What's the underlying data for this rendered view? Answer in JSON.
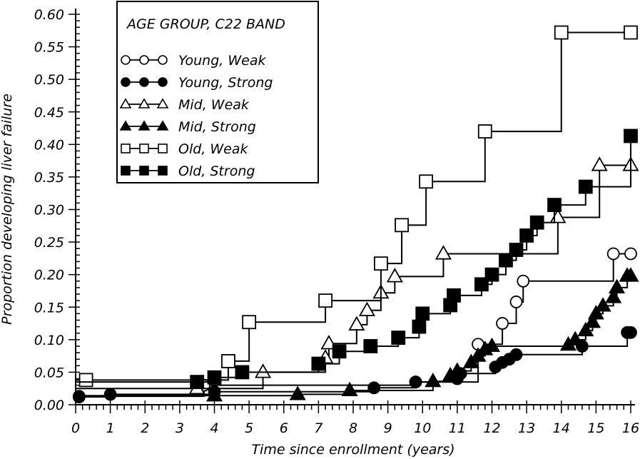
{
  "chart_data": {
    "type": "line",
    "step": true,
    "title": "",
    "xlabel": "Time since enrollment (years)",
    "ylabel": "Proportion developing liver failure",
    "xlim": [
      0,
      16
    ],
    "ylim": [
      0,
      0.6
    ],
    "x_ticks": [
      "0",
      "1",
      "2",
      "3",
      "4",
      "5",
      "6",
      "7",
      "8",
      "9",
      "10",
      "11",
      "12",
      "13",
      "14",
      "15",
      "16"
    ],
    "y_ticks": [
      "0.00",
      "0.05",
      "0.10",
      "0.15",
      "0.20",
      "0.25",
      "0.30",
      "0.35",
      "0.40",
      "0.45",
      "0.50",
      "0.55",
      "0.60"
    ],
    "grid": false,
    "legend": {
      "title": "AGE GROUP, C22 BAND",
      "placement": "top-left"
    },
    "series": [
      {
        "name": "Young, Weak",
        "marker": "circle-open",
        "points": [
          [
            0.1,
            0.013
          ],
          [
            3.7,
            0.03
          ],
          [
            9.8,
            0.035
          ],
          [
            11.6,
            0.093
          ],
          [
            12.3,
            0.125
          ],
          [
            12.7,
            0.158
          ],
          [
            12.9,
            0.19
          ],
          [
            15.5,
            0.232
          ],
          [
            16.0,
            0.232
          ]
        ]
      },
      {
        "name": "Young, Strong",
        "marker": "circle-filled",
        "points": [
          [
            0.1,
            0.012
          ],
          [
            1.0,
            0.016
          ],
          [
            4.0,
            0.02
          ],
          [
            8.6,
            0.026
          ],
          [
            9.8,
            0.035
          ],
          [
            11.0,
            0.04
          ],
          [
            11.1,
            0.048
          ],
          [
            12.1,
            0.058
          ],
          [
            12.3,
            0.065
          ],
          [
            12.5,
            0.07
          ],
          [
            12.7,
            0.077
          ],
          [
            14.6,
            0.09
          ],
          [
            15.9,
            0.111
          ],
          [
            16.0,
            0.111
          ]
        ]
      },
      {
        "name": "Mid, Weak",
        "marker": "triangle-open",
        "points": [
          [
            3.5,
            0.025
          ],
          [
            5.4,
            0.05
          ],
          [
            7.2,
            0.072
          ],
          [
            7.3,
            0.094
          ],
          [
            8.1,
            0.123
          ],
          [
            8.4,
            0.145
          ],
          [
            8.8,
            0.172
          ],
          [
            9.2,
            0.197
          ],
          [
            10.6,
            0.232
          ],
          [
            13.9,
            0.288
          ],
          [
            15.1,
            0.368
          ],
          [
            16.0,
            0.368
          ]
        ]
      },
      {
        "name": "Mid, Strong",
        "marker": "triangle-filled",
        "points": [
          [
            4.0,
            0.014
          ],
          [
            6.4,
            0.016
          ],
          [
            7.9,
            0.022
          ],
          [
            10.3,
            0.036
          ],
          [
            10.8,
            0.045
          ],
          [
            11.0,
            0.052
          ],
          [
            11.4,
            0.065
          ],
          [
            11.6,
            0.075
          ],
          [
            11.8,
            0.085
          ],
          [
            12.0,
            0.09
          ],
          [
            14.2,
            0.092
          ],
          [
            14.4,
            0.1
          ],
          [
            14.7,
            0.114
          ],
          [
            14.9,
            0.127
          ],
          [
            15.0,
            0.14
          ],
          [
            15.2,
            0.152
          ],
          [
            15.5,
            0.165
          ],
          [
            15.6,
            0.18
          ],
          [
            15.9,
            0.198
          ],
          [
            16.0,
            0.198
          ]
        ]
      },
      {
        "name": "Old, Weak",
        "marker": "square-open",
        "points": [
          [
            0.3,
            0.038
          ],
          [
            4.4,
            0.067
          ],
          [
            5.0,
            0.127
          ],
          [
            7.2,
            0.16
          ],
          [
            8.8,
            0.217
          ],
          [
            9.4,
            0.276
          ],
          [
            10.1,
            0.343
          ],
          [
            11.8,
            0.42
          ],
          [
            14.0,
            0.572
          ],
          [
            16.0,
            0.572
          ]
        ]
      },
      {
        "name": "Old, Strong",
        "marker": "square-filled",
        "points": [
          [
            3.5,
            0.035
          ],
          [
            4.0,
            0.042
          ],
          [
            4.8,
            0.05
          ],
          [
            7.0,
            0.063
          ],
          [
            7.6,
            0.082
          ],
          [
            8.5,
            0.09
          ],
          [
            9.3,
            0.103
          ],
          [
            9.9,
            0.12
          ],
          [
            10.0,
            0.14
          ],
          [
            10.8,
            0.153
          ],
          [
            10.9,
            0.168
          ],
          [
            11.7,
            0.185
          ],
          [
            12.0,
            0.2
          ],
          [
            12.4,
            0.222
          ],
          [
            12.7,
            0.238
          ],
          [
            13.0,
            0.26
          ],
          [
            13.3,
            0.28
          ],
          [
            13.8,
            0.307
          ],
          [
            14.7,
            0.335
          ],
          [
            16.0,
            0.413
          ]
        ]
      }
    ]
  }
}
